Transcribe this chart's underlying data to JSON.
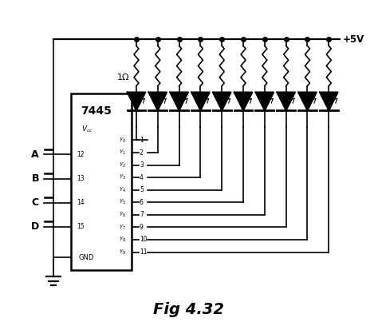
{
  "title": "Fig 4.32",
  "bg_color": "#ffffff",
  "line_color": "#000000",
  "chip_label": "7445",
  "vcc_label": "+5V",
  "resistor_label": "1Ω",
  "num_outputs": 10,
  "inputs": [
    {
      "label": "A",
      "pin": "12"
    },
    {
      "label": "B",
      "pin": "13"
    },
    {
      "label": "C",
      "pin": "14"
    },
    {
      "label": "D",
      "pin": "15"
    }
  ],
  "outputs": [
    {
      "label": "Y0",
      "pin": "1"
    },
    {
      "label": "Y1",
      "pin": "2"
    },
    {
      "label": "Y2",
      "pin": "3"
    },
    {
      "label": "Y3",
      "pin": "4"
    },
    {
      "label": "Y4",
      "pin": "5"
    },
    {
      "label": "Y5",
      "pin": "6"
    },
    {
      "label": "Y6",
      "pin": "7"
    },
    {
      "label": "Y7",
      "pin": "9"
    },
    {
      "label": "Y8",
      "pin": "10"
    },
    {
      "label": "Y9",
      "pin": "11"
    }
  ]
}
